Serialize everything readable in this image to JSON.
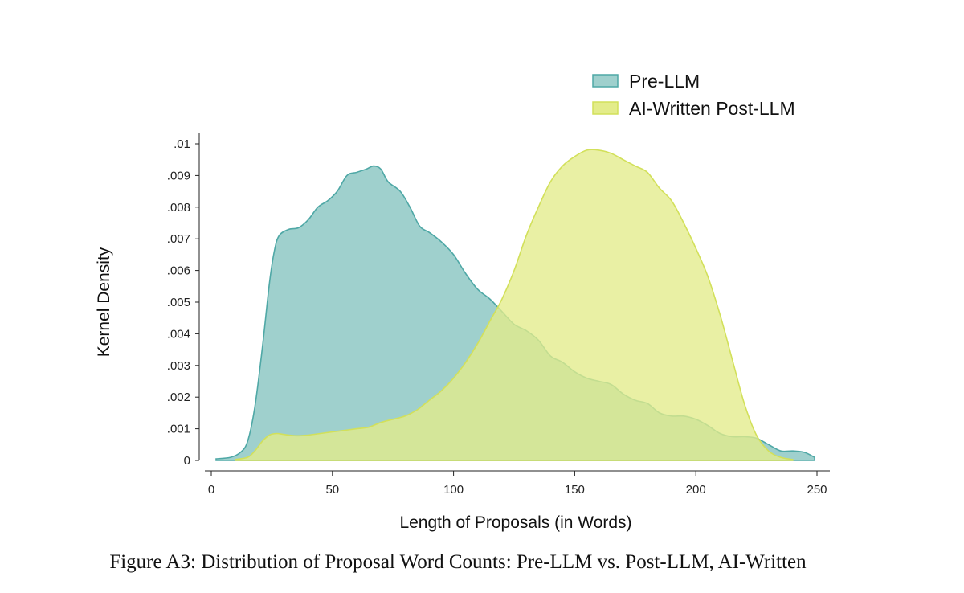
{
  "figure": {
    "caption": "Figure A3: Distribution of Proposal Word Counts: Pre-LLM vs. Post-LLM, AI-Written"
  },
  "chart_data": {
    "type": "area",
    "title": "",
    "xlabel": "Length of Proposals (in Words)",
    "ylabel": "Kernel Density",
    "xlim": [
      0,
      250
    ],
    "ylim": [
      0,
      0.01
    ],
    "x_ticks": [
      0,
      50,
      100,
      150,
      200,
      250
    ],
    "x_tick_labels": [
      "0",
      "50",
      "100",
      "150",
      "200",
      "250"
    ],
    "y_ticks": [
      0,
      0.001,
      0.002,
      0.003,
      0.004,
      0.005,
      0.006,
      0.007,
      0.008,
      0.009,
      0.01
    ],
    "y_tick_labels": [
      "0",
      ".001",
      ".002",
      ".003",
      ".004",
      ".005",
      ".006",
      ".007",
      ".008",
      ".009",
      ".01"
    ],
    "grid": false,
    "legend_position": "top-right",
    "series": [
      {
        "name": "Pre-LLM",
        "fill": "#9fd0cd",
        "stroke": "#4fa8a6",
        "points": [
          [
            2,
            5e-05
          ],
          [
            8,
            0.0001
          ],
          [
            12,
            0.00025
          ],
          [
            15,
            0.0006
          ],
          [
            18,
            0.0017
          ],
          [
            21,
            0.0035
          ],
          [
            24,
            0.0056
          ],
          [
            26,
            0.0066
          ],
          [
            28,
            0.0071
          ],
          [
            32,
            0.0073
          ],
          [
            36,
            0.00735
          ],
          [
            40,
            0.0076
          ],
          [
            44,
            0.008
          ],
          [
            48,
            0.0082
          ],
          [
            52,
            0.0085
          ],
          [
            56,
            0.009
          ],
          [
            60,
            0.0091
          ],
          [
            64,
            0.0092
          ],
          [
            67,
            0.0093
          ],
          [
            70,
            0.0092
          ],
          [
            73,
            0.0088
          ],
          [
            78,
            0.0085
          ],
          [
            82,
            0.008
          ],
          [
            86,
            0.0074
          ],
          [
            90,
            0.0072
          ],
          [
            95,
            0.0069
          ],
          [
            100,
            0.0065
          ],
          [
            105,
            0.0059
          ],
          [
            110,
            0.0054
          ],
          [
            115,
            0.0051
          ],
          [
            120,
            0.0047
          ],
          [
            125,
            0.0043
          ],
          [
            130,
            0.0041
          ],
          [
            135,
            0.0038
          ],
          [
            140,
            0.0033
          ],
          [
            145,
            0.0031
          ],
          [
            150,
            0.0028
          ],
          [
            155,
            0.0026
          ],
          [
            160,
            0.0025
          ],
          [
            165,
            0.0024
          ],
          [
            170,
            0.0021
          ],
          [
            175,
            0.0019
          ],
          [
            180,
            0.0018
          ],
          [
            185,
            0.0015
          ],
          [
            190,
            0.0014
          ],
          [
            195,
            0.0014
          ],
          [
            200,
            0.0013
          ],
          [
            205,
            0.0011
          ],
          [
            210,
            0.00085
          ],
          [
            215,
            0.00075
          ],
          [
            220,
            0.00075
          ],
          [
            225,
            0.0007
          ],
          [
            230,
            0.0005
          ],
          [
            235,
            0.0003
          ],
          [
            240,
            0.0003
          ],
          [
            245,
            0.00025
          ],
          [
            249,
            0.0001
          ]
        ]
      },
      {
        "name": "AI-Written Post-LLM",
        "fill": "#e3ec8a",
        "stroke": "#d2e05a",
        "points": [
          [
            10,
            3e-05
          ],
          [
            15,
            0.0001
          ],
          [
            18,
            0.0003
          ],
          [
            21,
            0.0006
          ],
          [
            24,
            0.0008
          ],
          [
            27,
            0.00085
          ],
          [
            30,
            0.00082
          ],
          [
            35,
            0.00078
          ],
          [
            40,
            0.0008
          ],
          [
            45,
            0.00085
          ],
          [
            50,
            0.0009
          ],
          [
            55,
            0.00095
          ],
          [
            60,
            0.001
          ],
          [
            65,
            0.00105
          ],
          [
            70,
            0.0012
          ],
          [
            75,
            0.0013
          ],
          [
            80,
            0.0014
          ],
          [
            85,
            0.0016
          ],
          [
            90,
            0.0019
          ],
          [
            95,
            0.0022
          ],
          [
            100,
            0.0026
          ],
          [
            105,
            0.0031
          ],
          [
            110,
            0.0037
          ],
          [
            115,
            0.0044
          ],
          [
            120,
            0.0051
          ],
          [
            125,
            0.006
          ],
          [
            130,
            0.0071
          ],
          [
            135,
            0.008
          ],
          [
            140,
            0.0088
          ],
          [
            145,
            0.0093
          ],
          [
            150,
            0.0096
          ],
          [
            155,
            0.0098
          ],
          [
            160,
            0.0098
          ],
          [
            165,
            0.0097
          ],
          [
            170,
            0.0095
          ],
          [
            175,
            0.0093
          ],
          [
            180,
            0.0091
          ],
          [
            185,
            0.0086
          ],
          [
            190,
            0.0082
          ],
          [
            195,
            0.0075
          ],
          [
            200,
            0.0067
          ],
          [
            205,
            0.0058
          ],
          [
            210,
            0.0046
          ],
          [
            215,
            0.0032
          ],
          [
            220,
            0.0018
          ],
          [
            225,
            0.0008
          ],
          [
            230,
            0.0003
          ],
          [
            235,
            0.0001
          ],
          [
            240,
            3e-05
          ]
        ]
      }
    ]
  }
}
